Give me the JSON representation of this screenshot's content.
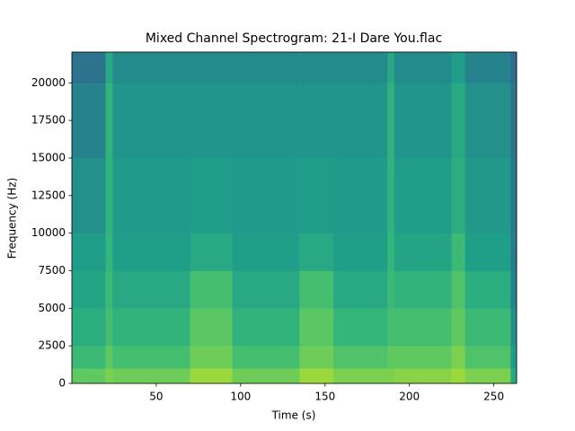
{
  "chart_data": {
    "type": "spectrogram",
    "title": "Mixed Channel Spectrogram: 21-I Dare You.flac",
    "x_label": "Time (s)",
    "y_label": "Frequency (Hz)",
    "colormap": "viridis",
    "clim": [
      0,
      1
    ],
    "xlim": [
      0,
      263.5
    ],
    "ylim": [
      0,
      22050
    ],
    "xticks": [
      50,
      100,
      150,
      200,
      250
    ],
    "yticks": [
      0,
      2500,
      5000,
      7500,
      10000,
      12500,
      15000,
      17500,
      20000
    ],
    "time_edges": [
      0,
      20,
      24,
      70,
      95,
      135,
      155,
      187,
      191,
      225,
      233,
      260,
      263.5
    ],
    "frequency_edges": [
      0,
      1000,
      2500,
      5000,
      7500,
      10000,
      15000,
      20000,
      22050
    ],
    "values": [
      [
        0.75,
        0.68,
        0.62,
        0.58,
        0.55,
        0.5,
        0.45,
        0.38
      ],
      [
        0.8,
        0.75,
        0.7,
        0.68,
        0.66,
        0.65,
        0.65,
        0.6
      ],
      [
        0.78,
        0.7,
        0.65,
        0.6,
        0.56,
        0.54,
        0.52,
        0.48
      ],
      [
        0.85,
        0.78,
        0.74,
        0.7,
        0.6,
        0.55,
        0.52,
        0.48
      ],
      [
        0.78,
        0.7,
        0.65,
        0.6,
        0.56,
        0.54,
        0.52,
        0.48
      ],
      [
        0.85,
        0.78,
        0.74,
        0.7,
        0.6,
        0.55,
        0.52,
        0.48
      ],
      [
        0.8,
        0.72,
        0.66,
        0.6,
        0.56,
        0.54,
        0.52,
        0.48
      ],
      [
        0.8,
        0.75,
        0.7,
        0.68,
        0.66,
        0.65,
        0.65,
        0.6
      ],
      [
        0.82,
        0.75,
        0.7,
        0.65,
        0.58,
        0.55,
        0.52,
        0.48
      ],
      [
        0.85,
        0.8,
        0.75,
        0.72,
        0.68,
        0.62,
        0.6,
        0.55
      ],
      [
        0.8,
        0.72,
        0.68,
        0.62,
        0.56,
        0.53,
        0.5,
        0.45
      ],
      [
        0.6,
        0.55,
        0.5,
        0.45,
        0.42,
        0.4,
        0.38,
        0.35
      ]
    ]
  }
}
